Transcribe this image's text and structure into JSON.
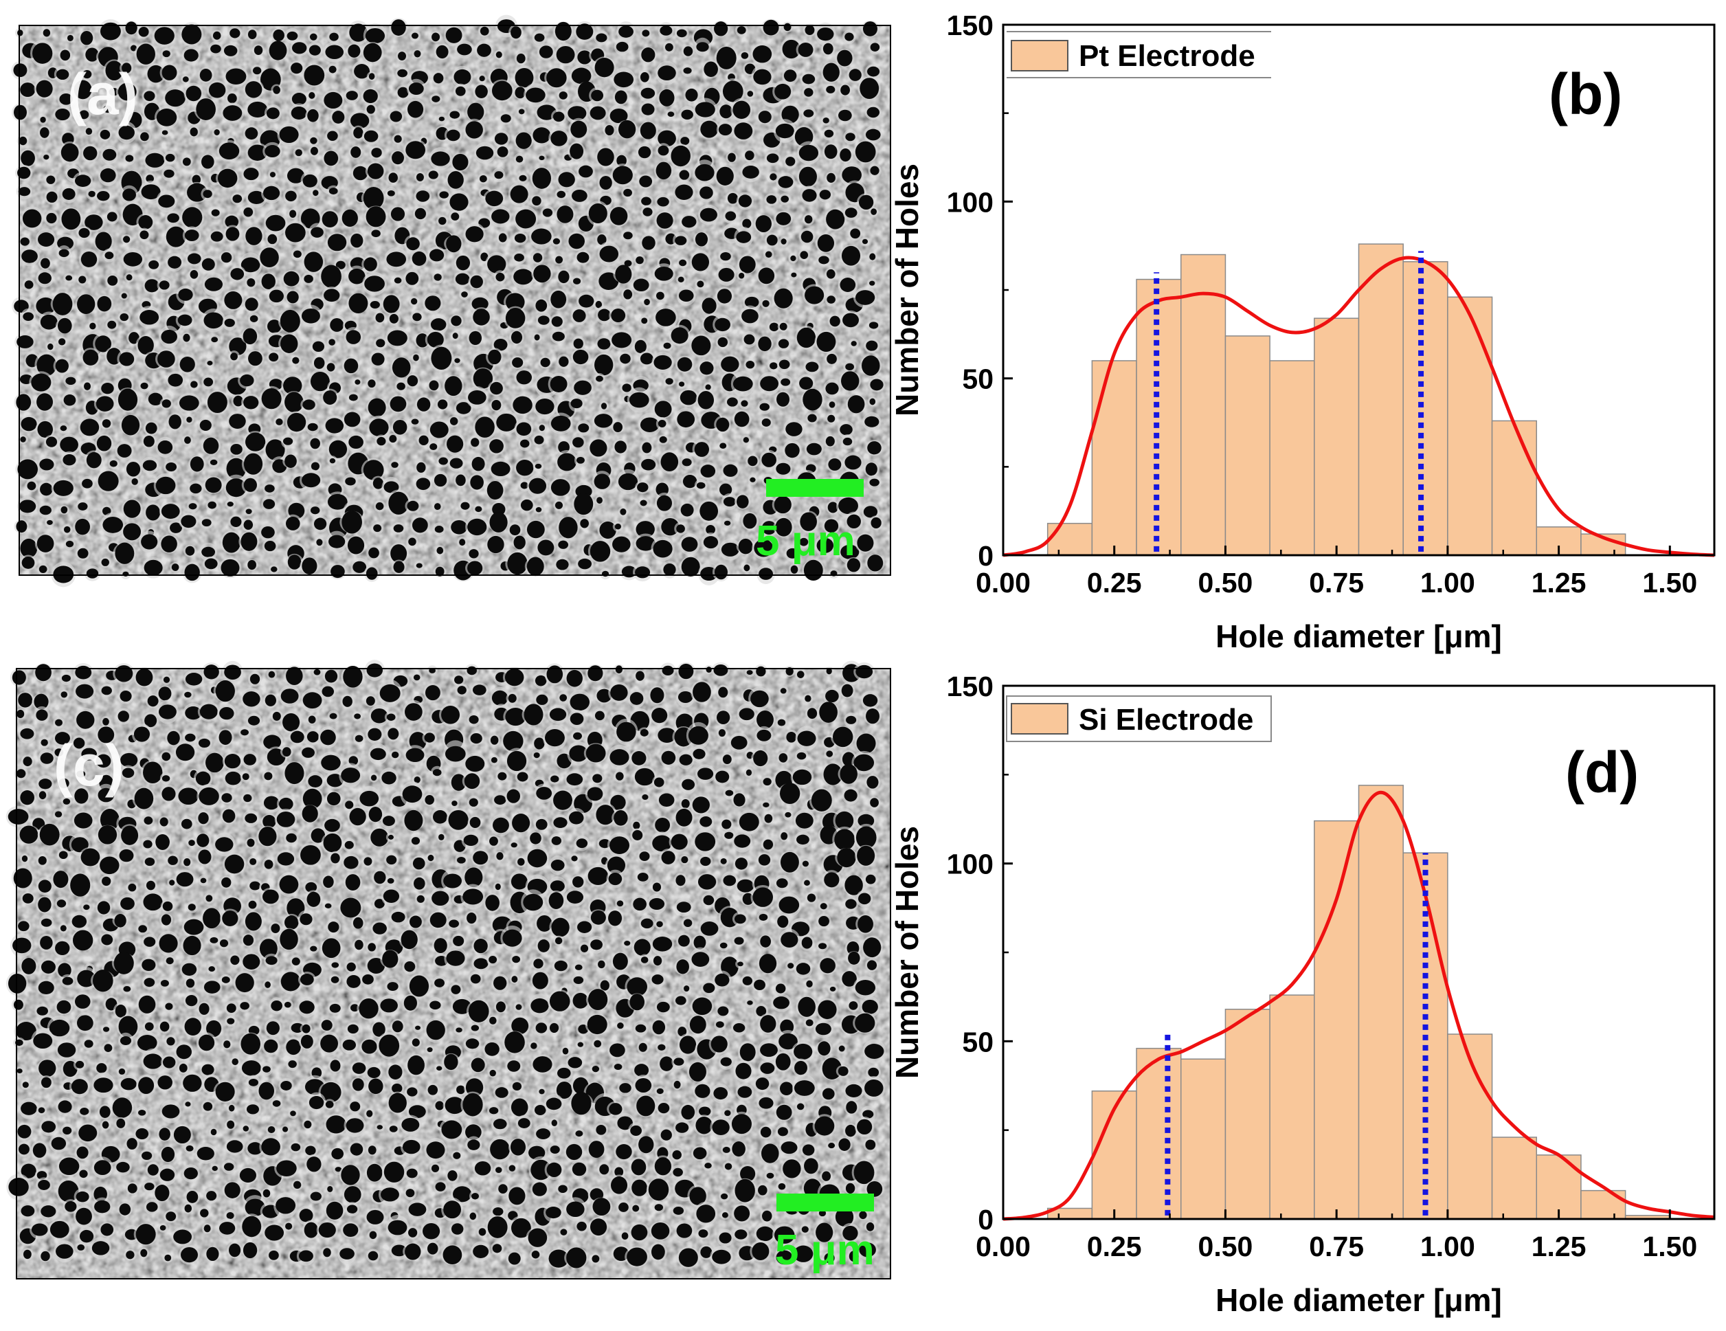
{
  "colors": {
    "bar_fill": "#f9c79a",
    "bar_stroke": "#8a8a8a",
    "fit_line": "#ee1111",
    "marker_line": "#1515e0",
    "scale_bar": "#22ee22"
  },
  "sem_panels": [
    {
      "label": "(a)",
      "scale_text": "5 μm"
    },
    {
      "label": "(c)",
      "scale_text": "5 μm"
    }
  ],
  "chart_data": [
    {
      "type": "bar",
      "panel_label": "(b)",
      "legend": "Pt Electrode",
      "xlabel": "Hole diameter [μm]",
      "ylabel": "Number of Holes",
      "xlim": [
        0,
        1.6
      ],
      "ylim": [
        0,
        150
      ],
      "xticks": [
        "0.00",
        "0.25",
        "0.50",
        "0.75",
        "1.00",
        "1.25",
        "1.50"
      ],
      "yticks": [
        "0",
        "50",
        "100",
        "150"
      ],
      "bin_edges": [
        0.1,
        0.2,
        0.3,
        0.4,
        0.5,
        0.6,
        0.7,
        0.8,
        0.9,
        1.0,
        1.1,
        1.2,
        1.3,
        1.4
      ],
      "values": [
        9,
        55,
        78,
        85,
        62,
        55,
        67,
        88,
        83,
        73,
        38,
        8,
        6
      ],
      "fit_curve": {
        "x": [
          0,
          0.05,
          0.1,
          0.15,
          0.2,
          0.25,
          0.3,
          0.35,
          0.4,
          0.45,
          0.5,
          0.55,
          0.6,
          0.65,
          0.7,
          0.75,
          0.8,
          0.85,
          0.9,
          0.95,
          1.0,
          1.05,
          1.1,
          1.15,
          1.2,
          1.25,
          1.3,
          1.35,
          1.4,
          1.45,
          1.5,
          1.55,
          1.6
        ],
        "y": [
          0,
          1,
          4,
          14,
          35,
          57,
          68,
          72,
          73,
          74,
          73,
          69,
          65,
          63,
          64,
          68,
          75,
          81,
          84,
          83,
          78,
          68,
          53,
          37,
          23,
          13,
          8,
          5,
          3,
          1.5,
          0.8,
          0.3,
          0
        ]
      },
      "marker_x": [
        0.345,
        0.94
      ],
      "marker_top": [
        80,
        86
      ]
    },
    {
      "type": "bar",
      "panel_label": "(d)",
      "legend": "Si Electrode",
      "xlabel": "Hole diameter [μm]",
      "ylabel": "Number of Holes",
      "xlim": [
        0,
        1.6
      ],
      "ylim": [
        0,
        150
      ],
      "xticks": [
        "0.00",
        "0.25",
        "0.50",
        "0.75",
        "1.00",
        "1.25",
        "1.50"
      ],
      "yticks": [
        "0",
        "50",
        "100",
        "150"
      ],
      "bin_edges": [
        0.1,
        0.2,
        0.3,
        0.4,
        0.5,
        0.6,
        0.7,
        0.8,
        0.9,
        1.0,
        1.1,
        1.2,
        1.3,
        1.4,
        1.5
      ],
      "values": [
        3,
        36,
        48,
        45,
        59,
        63,
        112,
        122,
        103,
        52,
        23,
        18,
        8,
        1
      ],
      "fit_curve": {
        "x": [
          0,
          0.05,
          0.1,
          0.15,
          0.2,
          0.25,
          0.3,
          0.35,
          0.4,
          0.45,
          0.5,
          0.55,
          0.6,
          0.65,
          0.7,
          0.75,
          0.8,
          0.85,
          0.9,
          0.95,
          1.0,
          1.05,
          1.1,
          1.15,
          1.2,
          1.25,
          1.3,
          1.35,
          1.4,
          1.45,
          1.5,
          1.55,
          1.6
        ],
        "y": [
          0,
          0.5,
          2,
          6,
          17,
          31,
          40,
          45,
          47,
          50,
          53,
          57,
          61,
          66,
          75,
          90,
          112,
          120,
          112,
          91,
          65,
          45,
          33,
          26,
          21,
          18,
          13,
          9,
          5,
          3,
          2,
          1,
          0.5
        ]
      },
      "marker_x": [
        0.37,
        0.95
      ],
      "marker_top": [
        52,
        103
      ]
    }
  ]
}
